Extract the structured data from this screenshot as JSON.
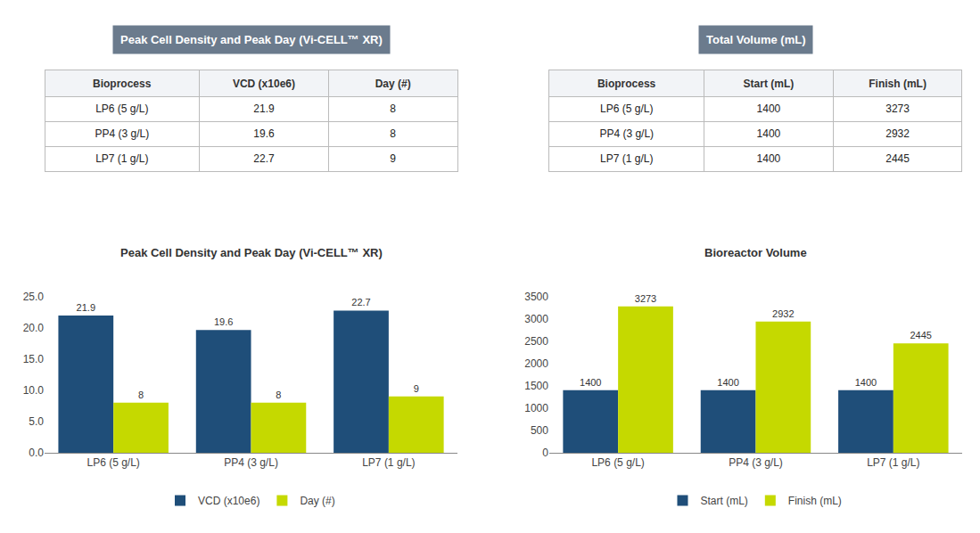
{
  "chart_data": [
    {
      "type": "table",
      "title": "Peak Cell Density and Peak Day (Vi-CELL™ XR)",
      "color": "#6B7B8D",
      "xlabel": "Bioprocess",
      "categories": [
        "LP6 (5 g/L)",
        "PP4 (3 g/L)",
        "LP7 (1 g/L)"
      ],
      "series": [
        {
          "name": "VCD (x10e6)",
          "values": [
            21.9,
            19.6,
            22.7
          ]
        },
        {
          "name": "Day (#)",
          "values": [
            8,
            8,
            9
          ]
        }
      ]
    },
    {
      "type": "table",
      "title": "Total Volume (mL)",
      "color": "#6B7B8D",
      "xlabel": "Bioprocess",
      "categories": [
        "LP6 (5 g/L)",
        "PP4 (3 g/L)",
        "LP7 (1 g/L)"
      ],
      "series": [
        {
          "name": "Start (mL)",
          "values": [
            1400,
            1400,
            1400
          ]
        },
        {
          "name": "Finish (mL)",
          "values": [
            3273,
            2932,
            2445
          ]
        }
      ]
    },
    {
      "type": "bar",
      "title": "Peak Cell Density and Peak Day (Vi-CELL™ XR)",
      "categories": [
        "LP6 (5 g/L)",
        "PP4 (3 g/L)",
        "LP7 (1 g/L)"
      ],
      "series": [
        {
          "name": "VCD (x10e6)",
          "color": "#1F4E79",
          "values": [
            21.9,
            19.6,
            22.7
          ]
        },
        {
          "name": "Day (#)",
          "color": "#C5D900",
          "values": [
            8,
            8,
            9
          ]
        }
      ],
      "ylim": [
        0,
        25.0
      ],
      "yticks": [
        {
          "value": 0,
          "label": "0.0"
        },
        {
          "value": 5,
          "label": "5.0"
        },
        {
          "value": 10,
          "label": "10.0"
        },
        {
          "value": 15,
          "label": "15.0"
        },
        {
          "value": 20,
          "label": "20.0"
        },
        {
          "value": 25,
          "label": "25.0"
        }
      ],
      "data_labels": true,
      "grid": false,
      "legend": "bottom"
    },
    {
      "type": "bar",
      "title": "Bioreactor Volume",
      "categories": [
        "LP6 (5 g/L)",
        "PP4 (3 g/L)",
        "LP7 (1 g/L)"
      ],
      "series": [
        {
          "name": "Start (mL)",
          "color": "#1F4E79",
          "values": [
            1400,
            1400,
            1400
          ]
        },
        {
          "name": "Finish (mL)",
          "color": "#C5D900",
          "values": [
            3273,
            2932,
            2445
          ]
        }
      ],
      "ylim": [
        0,
        3500
      ],
      "yticks": [
        0,
        500,
        1000,
        1500,
        2000,
        2500,
        3000,
        3500
      ],
      "data_labels": true,
      "grid": false,
      "legend": "bottom"
    }
  ]
}
